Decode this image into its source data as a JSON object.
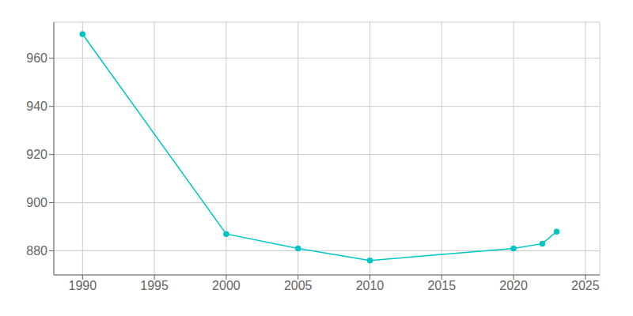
{
  "chart_data": {
    "type": "line",
    "x": [
      1990,
      2000,
      2005,
      2010,
      2020,
      2022,
      2023
    ],
    "values": [
      970,
      887,
      881,
      876,
      881,
      883,
      888
    ],
    "color": "#00C5C5",
    "marker": "circle",
    "xlim": [
      1988,
      2026
    ],
    "ylim": [
      870,
      975
    ],
    "xticks": [
      1990,
      1995,
      2000,
      2005,
      2010,
      2015,
      2020,
      2025
    ],
    "yticks": [
      880,
      900,
      920,
      940,
      960
    ],
    "grid": true
  }
}
